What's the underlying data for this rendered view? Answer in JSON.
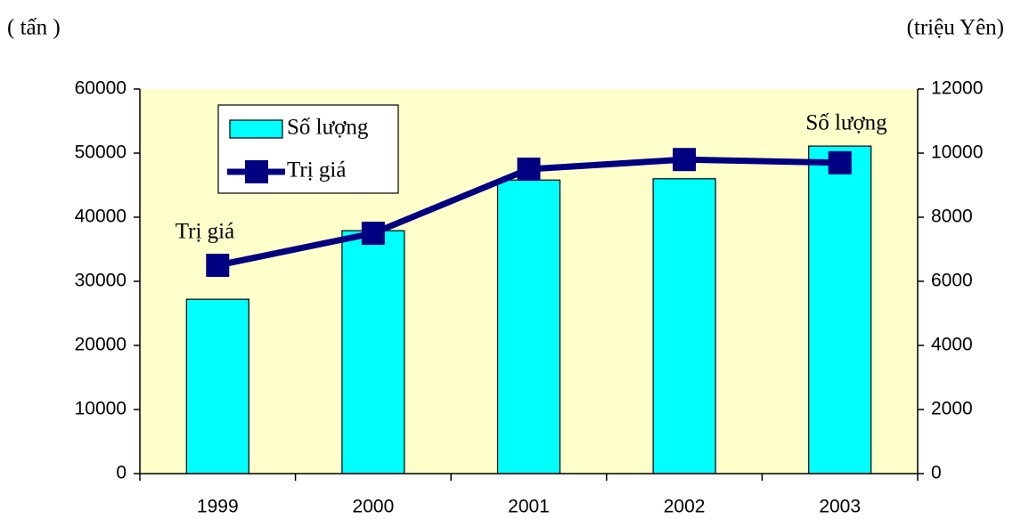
{
  "chart_data": {
    "type": "bar",
    "ylabel": "( tấn )",
    "y2label": "(triệu Yên)",
    "categories": [
      "1999",
      "2000",
      "2001",
      "2002",
      "2003"
    ],
    "series": [
      {
        "name": "Số lượng",
        "type": "bar",
        "color": "#00ffff",
        "values": [
          27200,
          37900,
          45800,
          46000,
          51100
        ]
      },
      {
        "name": "Trị giá",
        "type": "line",
        "axis": "y2",
        "color": "#000080",
        "values": [
          6500,
          7500,
          9500,
          9800,
          9700
        ]
      }
    ],
    "ylim": [
      0,
      60000
    ],
    "yticks": [
      0,
      10000,
      20000,
      30000,
      40000,
      50000,
      60000
    ],
    "y2lim": [
      0,
      12000
    ],
    "y2ticks": [
      0,
      2000,
      4000,
      6000,
      8000,
      10000,
      12000
    ],
    "annotations": [
      "Trị giá",
      "Số lượng"
    ],
    "legend": "upper left",
    "background": "#ffffcc"
  }
}
